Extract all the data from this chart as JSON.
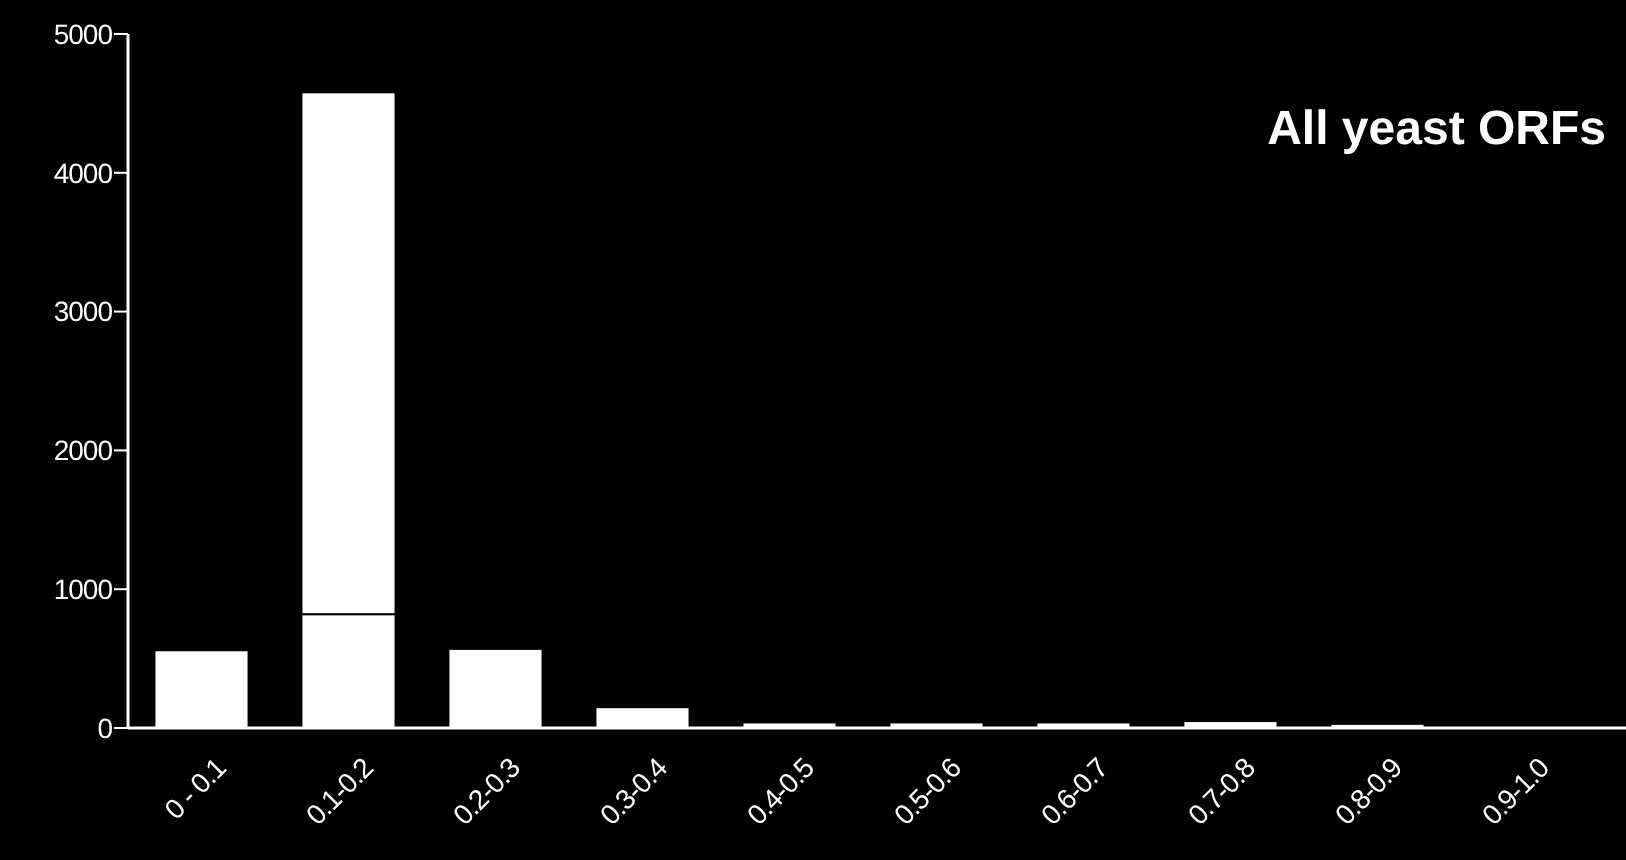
{
  "chart_data": {
    "type": "bar",
    "title": "All yeast ORFs",
    "categories": [
      "0 - 0.1",
      "0.1-0.2",
      "0.2-0.3",
      "0.3-0.4",
      "0.4-0.5",
      "0.5-0.6",
      "0.6-0.7",
      "0.7-0.8",
      "0.8-0.9",
      "0.9-1.0"
    ],
    "stacked": true,
    "series": [
      {
        "color": "#ffffff",
        "values": [
          560,
          820,
          570,
          150,
          40,
          40,
          40,
          50,
          30,
          0
        ]
      },
      {
        "color": "#ffffff",
        "values": [
          null,
          3760,
          null,
          null,
          null,
          null,
          null,
          null,
          null,
          null
        ]
      }
    ],
    "ylim": [
      0,
      5000
    ],
    "yticks": [
      0,
      1000,
      2000,
      3000,
      4000,
      5000
    ],
    "grid": false
  }
}
